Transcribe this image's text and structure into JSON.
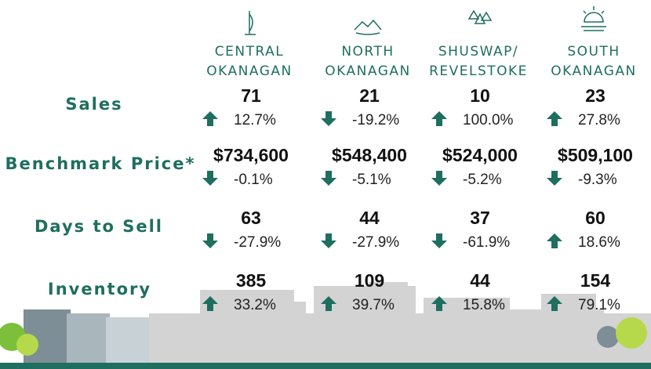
{
  "regions": [
    {
      "name": [
        "CENTRAL",
        "OKANAGAN"
      ]
    },
    {
      "name": [
        "NORTH",
        "OKANAGAN"
      ]
    },
    {
      "name": [
        "SHUSWAP/",
        "REVELSTOKE"
      ]
    },
    {
      "name": [
        "SOUTH",
        "OKANAGAN"
      ]
    }
  ],
  "metrics": [
    {
      "label": "Sales",
      "values": [
        "71",
        "21",
        "10",
        "23"
      ],
      "changes": [
        "12.7%",
        "-19.2%",
        "100.0%",
        "27.8%"
      ]
    },
    {
      "label": "Benchmark Price*",
      "values": [
        "$734,600",
        "$548,400",
        "$524,000",
        "$509,100"
      ],
      "changes": [
        "-0.1%",
        "-5.1%",
        "-5.2%",
        "-9.3%"
      ]
    },
    {
      "label": "Days to Sell",
      "values": [
        "63",
        "44",
        "37",
        "60"
      ],
      "changes": [
        "-27.9%",
        "-27.9%",
        "-61.9%",
        "18.6%"
      ]
    },
    {
      "label": "Inventory",
      "values": [
        "385",
        "109",
        "44",
        "154"
      ],
      "changes": [
        "33.2%",
        "39.7%",
        "15.8%",
        "79.1%"
      ]
    }
  ]
}
